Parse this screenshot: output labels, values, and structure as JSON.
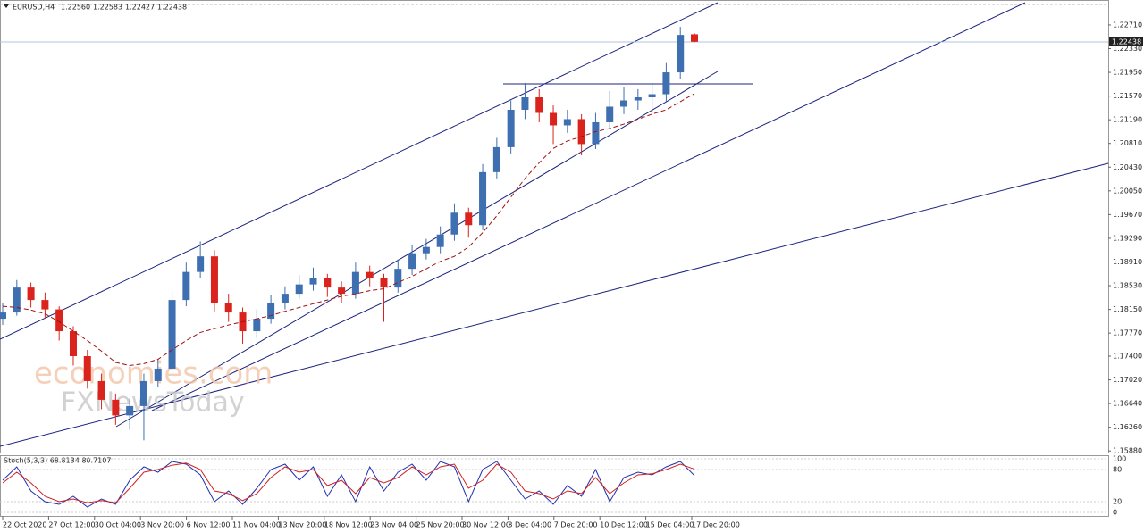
{
  "chart_data": {
    "type": "candlestick",
    "title": "EURUSD,H4",
    "header_values": [
      "1.22560",
      "1.22583",
      "1.22427",
      "1.22438"
    ],
    "last_price": 1.22438,
    "watermarks": [
      "economies.com",
      "FXNewsToday"
    ],
    "up_color": "#3e6fb0",
    "down_color": "#d9231c",
    "ma_color": "#a01010",
    "ylim": [
      1.1584,
      1.2311
    ],
    "yticks": [
      {
        "value": 1.2271,
        "label": "1.22710"
      },
      {
        "value": 1.2233,
        "label": "1.22330"
      },
      {
        "value": 1.2195,
        "label": "1.21950"
      },
      {
        "value": 1.2157,
        "label": "1.21570"
      },
      {
        "value": 1.2119,
        "label": "1.21190"
      },
      {
        "value": 1.2081,
        "label": "1.20810"
      },
      {
        "value": 1.2043,
        "label": "1.20430"
      },
      {
        "value": 1.2005,
        "label": "1.20050"
      },
      {
        "value": 1.1967,
        "label": "1.19670"
      },
      {
        "value": 1.1929,
        "label": "1.19290"
      },
      {
        "value": 1.1891,
        "label": "1.18910"
      },
      {
        "value": 1.1853,
        "label": "1.18530"
      },
      {
        "value": 1.1815,
        "label": "1.18150"
      },
      {
        "value": 1.1777,
        "label": "1.17770"
      },
      {
        "value": 1.174,
        "label": "1.17400"
      },
      {
        "value": 1.1702,
        "label": "1.17020"
      },
      {
        "value": 1.1664,
        "label": "1.16640"
      },
      {
        "value": 1.1626,
        "label": "1.16260"
      },
      {
        "value": 1.1588,
        "label": "1.15880"
      }
    ],
    "x_labels": [
      "22 Oct 2020",
      "27 Oct 12:00",
      "30 Oct 04:00",
      "3 Nov 20:00",
      "6 Nov 12:00",
      "11 Nov 04:00",
      "13 Nov 20:00",
      "18 Nov 12:00",
      "23 Nov 04:00",
      "25 Nov 20:00",
      "30 Nov 12:00",
      "3 Dec 04:00",
      "7 Dec 20:00",
      "10 Dec 12:00",
      "15 Dec 04:00",
      "17 Dec 20:00"
    ],
    "ohlc": [
      [
        1.18,
        1.1825,
        1.179,
        1.181
      ],
      [
        1.181,
        1.1862,
        1.1805,
        1.185
      ],
      [
        1.185,
        1.1858,
        1.1818,
        1.183
      ],
      [
        1.183,
        1.1842,
        1.18,
        1.1815
      ],
      [
        1.1815,
        1.182,
        1.1765,
        1.178
      ],
      [
        1.178,
        1.1788,
        1.1725,
        1.174
      ],
      [
        1.174,
        1.175,
        1.1688,
        1.17
      ],
      [
        1.17,
        1.1712,
        1.1655,
        1.167
      ],
      [
        1.167,
        1.168,
        1.163,
        1.1645
      ],
      [
        1.1645,
        1.1672,
        1.1622,
        1.166
      ],
      [
        1.166,
        1.1712,
        1.1605,
        1.17
      ],
      [
        1.17,
        1.1735,
        1.169,
        1.172
      ],
      [
        1.172,
        1.1845,
        1.1712,
        1.183
      ],
      [
        1.183,
        1.189,
        1.182,
        1.1875
      ],
      [
        1.1875,
        1.1924,
        1.1865,
        1.19
      ],
      [
        1.19,
        1.191,
        1.1812,
        1.1825
      ],
      [
        1.1825,
        1.184,
        1.1795,
        1.181
      ],
      [
        1.181,
        1.1818,
        1.176,
        1.178
      ],
      [
        1.178,
        1.1815,
        1.177,
        1.18
      ],
      [
        1.18,
        1.1838,
        1.1792,
        1.1825
      ],
      [
        1.1825,
        1.1852,
        1.1815,
        1.184
      ],
      [
        1.184,
        1.187,
        1.1832,
        1.1855
      ],
      [
        1.1855,
        1.1882,
        1.1845,
        1.1865
      ],
      [
        1.1865,
        1.1872,
        1.1835,
        1.185
      ],
      [
        1.185,
        1.186,
        1.1825,
        1.184
      ],
      [
        1.184,
        1.189,
        1.1832,
        1.1875
      ],
      [
        1.1875,
        1.1885,
        1.1852,
        1.1865
      ],
      [
        1.1865,
        1.1872,
        1.1795,
        1.185
      ],
      [
        1.185,
        1.1895,
        1.1842,
        1.188
      ],
      [
        1.188,
        1.1918,
        1.187,
        1.1905
      ],
      [
        1.1905,
        1.1928,
        1.1895,
        1.1915
      ],
      [
        1.1915,
        1.1948,
        1.1905,
        1.1935
      ],
      [
        1.1935,
        1.1985,
        1.1925,
        1.197
      ],
      [
        1.197,
        1.1978,
        1.193,
        1.195
      ],
      [
        1.195,
        1.2048,
        1.1942,
        1.2035
      ],
      [
        1.2035,
        1.209,
        1.2025,
        1.2075
      ],
      [
        1.2075,
        1.215,
        1.2065,
        1.2135
      ],
      [
        1.2135,
        1.2178,
        1.212,
        1.2155
      ],
      [
        1.2155,
        1.2168,
        1.2115,
        1.213
      ],
      [
        1.213,
        1.2142,
        1.208,
        1.211
      ],
      [
        1.211,
        1.2135,
        1.2098,
        1.212
      ],
      [
        1.212,
        1.2128,
        1.2062,
        1.208
      ],
      [
        1.208,
        1.213,
        1.2072,
        1.2115
      ],
      [
        1.2115,
        1.2165,
        1.2105,
        1.214
      ],
      [
        1.214,
        1.2172,
        1.2128,
        1.215
      ],
      [
        1.215,
        1.2168,
        1.2135,
        1.2155
      ],
      [
        1.2155,
        1.2178,
        1.213,
        1.216
      ],
      [
        1.216,
        1.221,
        1.2148,
        1.2195
      ],
      [
        1.2195,
        1.2268,
        1.2185,
        1.2255
      ],
      [
        1.2256,
        1.2258,
        1.2243,
        1.2244
      ]
    ],
    "ma": [
      1.182,
      1.1818,
      1.1814,
      1.1808,
      1.1795,
      1.178,
      1.1765,
      1.1748,
      1.173,
      1.1725,
      1.1728,
      1.1735,
      1.175,
      1.1765,
      1.1778,
      1.1784,
      1.179,
      1.1795,
      1.18,
      1.1805,
      1.1812,
      1.1818,
      1.1824,
      1.183,
      1.1836,
      1.184,
      1.1845,
      1.1848,
      1.1858,
      1.1868,
      1.188,
      1.1892,
      1.19,
      1.1915,
      1.1938,
      1.1965,
      1.1995,
      1.2025,
      1.205,
      1.2073,
      1.2085,
      1.2092,
      1.21,
      1.2105,
      1.2112,
      1.212,
      1.2128,
      1.2135,
      1.2148,
      1.2161
    ],
    "stoch": {
      "label": "Stoch(5,3,3) 68.8134 80.7107",
      "ylim": [
        0,
        100
      ],
      "yticks": [
        100,
        80,
        20,
        0
      ],
      "series": [
        {
          "name": "Main",
          "color": "#2030b0",
          "values": [
            60,
            85,
            40,
            20,
            15,
            30,
            10,
            25,
            15,
            60,
            85,
            75,
            95,
            90,
            70,
            20,
            40,
            15,
            45,
            80,
            90,
            60,
            85,
            30,
            70,
            20,
            85,
            40,
            75,
            90,
            60,
            95,
            85,
            20,
            80,
            95,
            60,
            25,
            40,
            15,
            50,
            30,
            80,
            20,
            65,
            75,
            70,
            85,
            95,
            68.8134
          ]
        },
        {
          "name": "Signal",
          "color": "#d02020",
          "values": [
            55,
            75,
            55,
            30,
            20,
            25,
            18,
            22,
            18,
            45,
            75,
            80,
            88,
            92,
            80,
            40,
            35,
            22,
            35,
            65,
            85,
            75,
            80,
            50,
            60,
            35,
            65,
            55,
            65,
            85,
            70,
            85,
            90,
            45,
            60,
            90,
            75,
            40,
            35,
            25,
            40,
            35,
            65,
            35,
            55,
            70,
            72,
            80,
            90,
            80.7107
          ]
        }
      ]
    }
  }
}
